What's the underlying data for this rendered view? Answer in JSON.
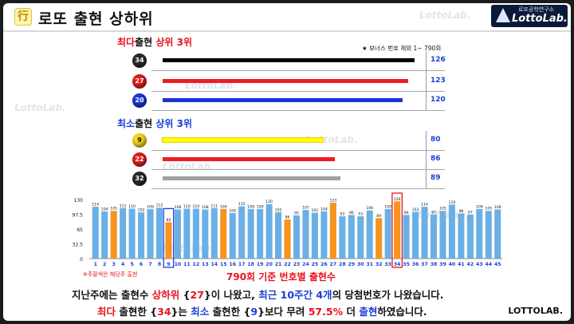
{
  "title": "로또 출현 상하위",
  "title_icon": "行",
  "logo": {
    "small": "로또공학연구소",
    "big": "LottoLab."
  },
  "watermark": "LottoLab.",
  "note_bonus": "★ 보너스 번호 제외  1~ 790회",
  "top_section": {
    "title_parts": [
      {
        "text": "최다",
        "color": "red"
      },
      {
        "text": "출현 ",
        "color": "dark"
      },
      {
        "text": "상위 3위",
        "color": "red"
      }
    ],
    "rows": [
      {
        "number": "34",
        "ball_color": "#2a2a2a",
        "text_color": "#ffffff",
        "bar_color": "#000000",
        "count": 126
      },
      {
        "number": "27",
        "ball_color": "#e01e1e",
        "text_color": "#ffffff",
        "bar_color": "#ee1c24",
        "count": 123
      },
      {
        "number": "20",
        "ball_color": "#1c34d8",
        "text_color": "#ffffff",
        "bar_color": "#1c34d8",
        "count": 120
      }
    ]
  },
  "bottom_section": {
    "title_parts": [
      {
        "text": "최소",
        "color": "blue"
      },
      {
        "text": "출현 ",
        "color": "dark"
      },
      {
        "text": "상위 3위",
        "color": "blue"
      }
    ],
    "rows": [
      {
        "number": "9",
        "ball_color": "#f2d51e",
        "text_color": "#111111",
        "bar_color": "#ffff00",
        "count": 80
      },
      {
        "number": "22",
        "ball_color": "#e01e1e",
        "text_color": "#ffffff",
        "bar_color": "#ee1c24",
        "count": 86
      },
      {
        "number": "32",
        "ball_color": "#2a2a2a",
        "text_color": "#ffffff",
        "bar_color": "#a0a0a0",
        "count": 89
      }
    ]
  },
  "chart_data": {
    "type": "bar",
    "categories": [
      "1",
      "2",
      "3",
      "4",
      "5",
      "6",
      "7",
      "8",
      "9",
      "10",
      "11",
      "12",
      "13",
      "14",
      "15",
      "16",
      "17",
      "18",
      "19",
      "20",
      "21",
      "22",
      "23",
      "24",
      "25",
      "26",
      "27",
      "28",
      "29",
      "30",
      "31",
      "32",
      "33",
      "34",
      "35",
      "36",
      "37",
      "38",
      "39",
      "40",
      "41",
      "42",
      "43",
      "44",
      "45"
    ],
    "values": [
      114,
      104,
      105,
      111,
      110,
      102,
      109,
      112,
      80,
      108,
      110,
      110,
      108,
      111,
      109,
      100,
      115,
      109,
      109,
      120,
      102,
      86,
      95,
      107,
      101,
      104,
      123,
      93,
      96,
      93,
      106,
      89,
      109,
      126,
      96,
      103,
      114,
      97,
      105,
      119,
      99,
      97,
      109,
      105,
      108
    ],
    "highlight_orange": [
      "3",
      "9",
      "15",
      "22",
      "27",
      "32",
      "34"
    ],
    "boxed": [
      "9",
      "34"
    ],
    "yticks": [
      130,
      97.5,
      65,
      32.5,
      0
    ],
    "ylim": [
      0,
      130
    ],
    "title": "790회 기준 번호별 출현수",
    "legend_note": "※주황색은 해당주 출현",
    "bar_color": "#6ab0e6",
    "highlight_color": "#f7941d",
    "box_color": "#1a3fd6",
    "box_color2": "#e8121c"
  },
  "summary": {
    "line1": [
      {
        "text": "지난주에는 출현수 ",
        "color": "dark"
      },
      {
        "text": "상하위",
        "color": "red"
      },
      {
        "text": " {",
        "color": "dark"
      },
      {
        "text": "27",
        "color": "red"
      },
      {
        "text": "}이 나왔고, ",
        "color": "dark"
      },
      {
        "text": "최근 10주간 4개",
        "color": "blue"
      },
      {
        "text": "의 당첨번호가 나왔습니다.",
        "color": "dark"
      }
    ],
    "line2": [
      {
        "text": "최다",
        "color": "red"
      },
      {
        "text": " 출현한 {",
        "color": "dark"
      },
      {
        "text": "34",
        "color": "red"
      },
      {
        "text": "}는 ",
        "color": "dark"
      },
      {
        "text": "최소",
        "color": "blue"
      },
      {
        "text": " 출현한 {",
        "color": "dark"
      },
      {
        "text": "9",
        "color": "blue"
      },
      {
        "text": "}보다 무려 ",
        "color": "dark"
      },
      {
        "text": "57.5%",
        "color": "red"
      },
      {
        "text": " 더 ",
        "color": "dark"
      },
      {
        "text": "출현",
        "color": "blue"
      },
      {
        "text": "하였습니다.",
        "color": "dark"
      }
    ]
  },
  "brand": "LOTTOLAB."
}
